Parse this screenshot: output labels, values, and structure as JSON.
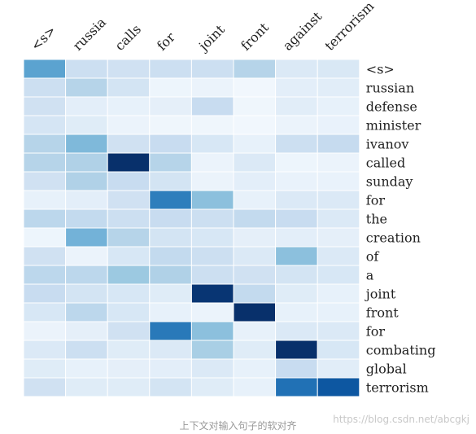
{
  "chart_data": {
    "type": "heatmap",
    "title": "",
    "xlabel": "",
    "ylabel": "",
    "x_tokens": [
      "<s>",
      "russia",
      "calls",
      "for",
      "joint",
      "front",
      "against",
      "terrorism"
    ],
    "y_tokens": [
      "<s>",
      "russian",
      "defense",
      "minister",
      "ivanov",
      "called",
      "sunday",
      "for",
      "the",
      "creation",
      "of",
      "a",
      "joint",
      "front",
      "for",
      "combating",
      "global",
      "terrorism"
    ],
    "values": [
      [
        0.55,
        0.22,
        0.2,
        0.22,
        0.22,
        0.3,
        0.14,
        0.15
      ],
      [
        0.22,
        0.3,
        0.18,
        0.05,
        0.06,
        0.03,
        0.1,
        0.11
      ],
      [
        0.2,
        0.1,
        0.08,
        0.09,
        0.24,
        0.04,
        0.11,
        0.08
      ],
      [
        0.17,
        0.12,
        0.06,
        0.04,
        0.04,
        0.03,
        0.06,
        0.07
      ],
      [
        0.3,
        0.45,
        0.2,
        0.24,
        0.16,
        0.08,
        0.22,
        0.25
      ],
      [
        0.3,
        0.32,
        1.0,
        0.3,
        0.06,
        0.14,
        0.05,
        0.06
      ],
      [
        0.2,
        0.32,
        0.24,
        0.18,
        0.06,
        0.1,
        0.07,
        0.07
      ],
      [
        0.08,
        0.1,
        0.2,
        0.7,
        0.42,
        0.08,
        0.14,
        0.14
      ],
      [
        0.28,
        0.26,
        0.22,
        0.24,
        0.22,
        0.26,
        0.24,
        0.14
      ],
      [
        0.05,
        0.48,
        0.3,
        0.18,
        0.16,
        0.09,
        0.1,
        0.09
      ],
      [
        0.2,
        0.06,
        0.16,
        0.26,
        0.22,
        0.14,
        0.42,
        0.14
      ],
      [
        0.28,
        0.28,
        0.38,
        0.32,
        0.22,
        0.2,
        0.18,
        0.16
      ],
      [
        0.24,
        0.18,
        0.16,
        0.12,
        0.98,
        0.26,
        0.12,
        0.08
      ],
      [
        0.16,
        0.28,
        0.16,
        0.08,
        0.06,
        1.0,
        0.08,
        0.08
      ],
      [
        0.06,
        0.09,
        0.2,
        0.72,
        0.42,
        0.08,
        0.14,
        0.14
      ],
      [
        0.14,
        0.22,
        0.12,
        0.14,
        0.34,
        0.12,
        1.0,
        0.16
      ],
      [
        0.12,
        0.08,
        0.09,
        0.1,
        0.14,
        0.08,
        0.24,
        0.11
      ],
      [
        0.2,
        0.12,
        0.12,
        0.18,
        0.12,
        0.08,
        0.75,
        0.85
      ]
    ],
    "colormap": "Blues",
    "grid": true,
    "x_labels_position": "top",
    "y_labels_position": "right"
  },
  "caption": "上下文对输入句子的软对齐",
  "watermark": "https://blog.csdn.net/abcgkj"
}
